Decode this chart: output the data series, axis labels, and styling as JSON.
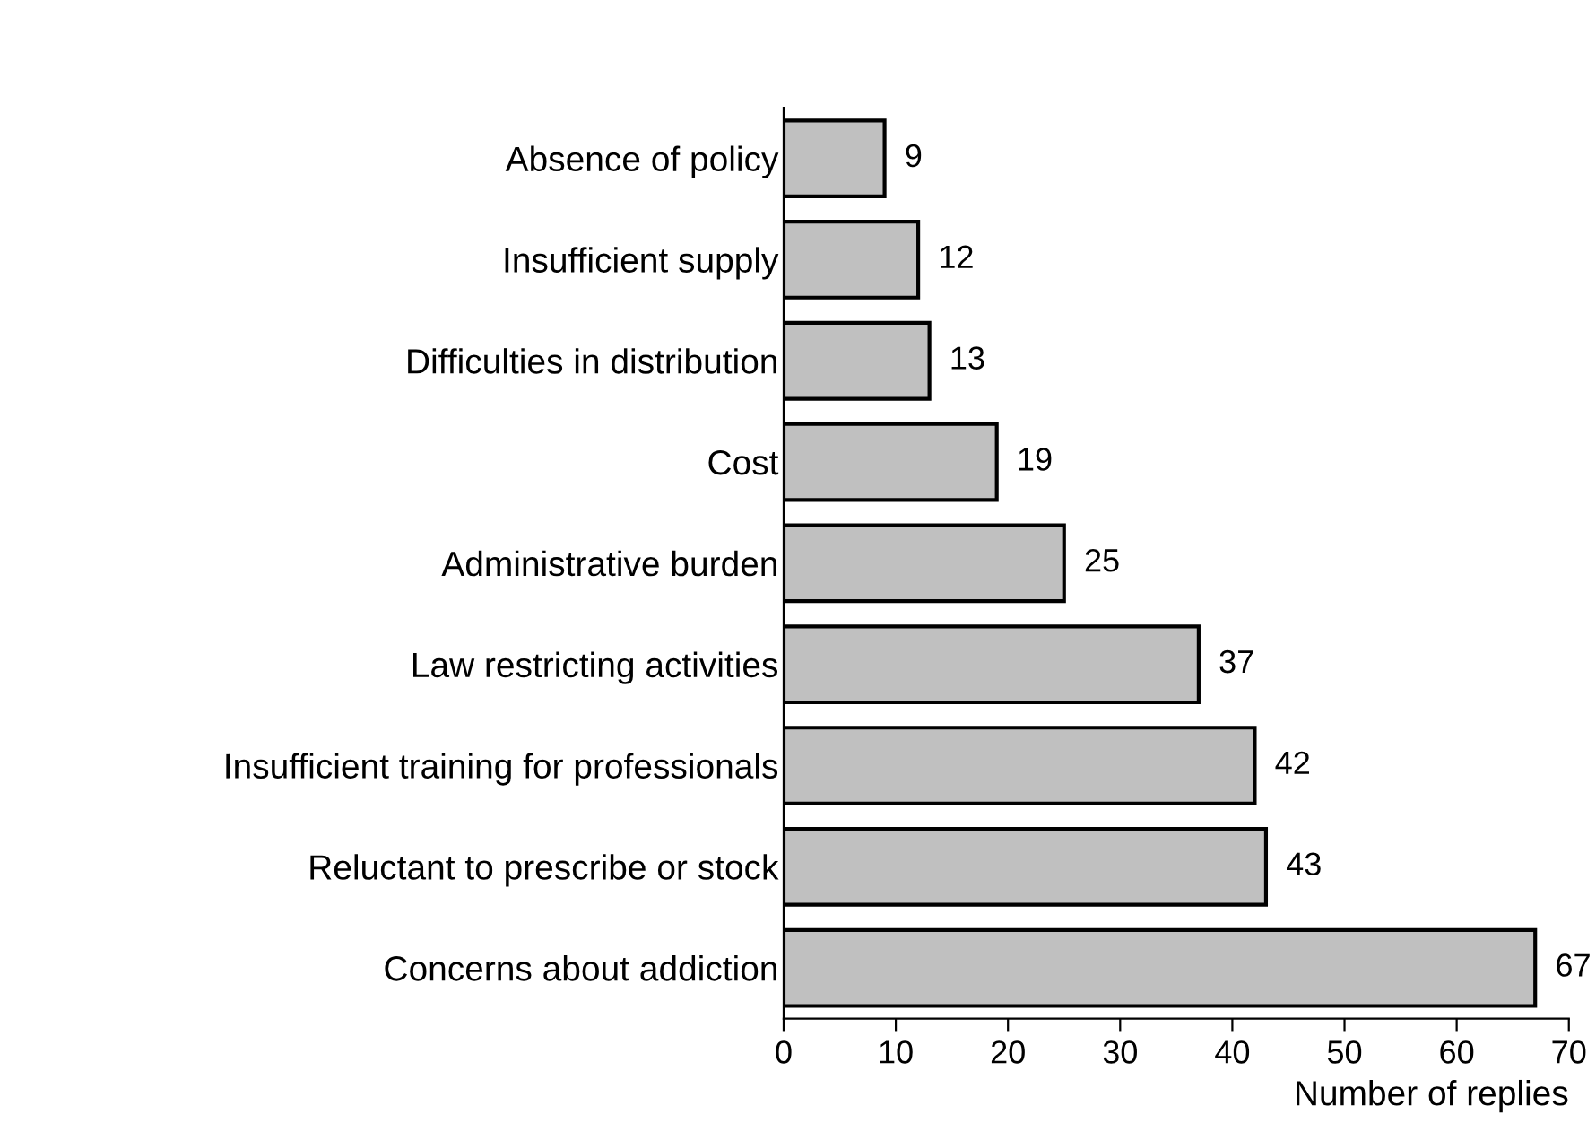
{
  "chart_data": {
    "type": "bar",
    "orientation": "horizontal",
    "categories": [
      "Absence of policy",
      "Insufficient supply",
      "Difficulties in distribution",
      "Cost",
      "Administrative burden",
      "Law restricting activities",
      "Insufficient training for professionals",
      "Reluctant to prescribe or stock",
      "Concerns about addiction"
    ],
    "values": [
      9,
      12,
      13,
      19,
      25,
      37,
      42,
      43,
      67
    ],
    "color": "#c0c0c0",
    "xlim": [
      0,
      70
    ],
    "xticks": [
      0,
      10,
      20,
      30,
      40,
      50,
      60,
      70
    ],
    "xlabel": "Number of replies",
    "data_labels": true
  }
}
